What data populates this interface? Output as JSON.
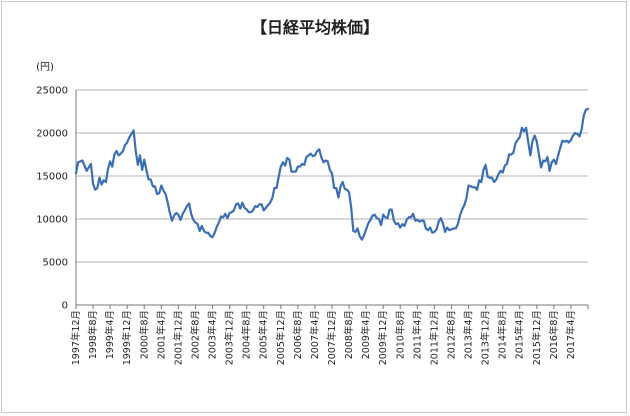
{
  "chart_data": {
    "type": "line",
    "title": "【日経平均株価】",
    "unit_label": "(円)",
    "xlabel": "",
    "ylabel": "",
    "ylim": [
      0,
      25000
    ],
    "y_ticks": [
      0,
      5000,
      10000,
      15000,
      20000,
      25000
    ],
    "grid": true,
    "x_start": "1997-12",
    "x_end": "2017-12",
    "x_tick_labels": [
      "1997年12月",
      "1998年8月",
      "1999年4月",
      "1999年12月",
      "2000年8月",
      "2001年4月",
      "2001年12月",
      "2002年8月",
      "2003年4月",
      "2003年12月",
      "2004年8月",
      "2005年4月",
      "2005年12月",
      "2006年8月",
      "2007年4月",
      "2007年12月",
      "2008年8月",
      "2009年4月",
      "2009年12月",
      "2010年8月",
      "2011年4月",
      "2011年12月",
      "2012年8月",
      "2013年4月",
      "2013年12月",
      "2014年8月",
      "2015年4月",
      "2015年12月",
      "2016年8月",
      "2017年4月"
    ],
    "series": [
      {
        "color": "#3a6fb4",
        "points": [
          [
            "1997-12",
            15300
          ],
          [
            "1998-01",
            16600
          ],
          [
            "1998-03",
            16800
          ],
          [
            "1998-05",
            15600
          ],
          [
            "1998-07",
            16400
          ],
          [
            "1998-08",
            14100
          ],
          [
            "1998-09",
            13400
          ],
          [
            "1998-10",
            13600
          ],
          [
            "1998-11",
            14800
          ],
          [
            "1998-12",
            14000
          ],
          [
            "1999-01",
            14500
          ],
          [
            "1999-02",
            14300
          ],
          [
            "1999-03",
            15800
          ],
          [
            "1999-04",
            16700
          ],
          [
            "1999-05",
            16100
          ],
          [
            "1999-06",
            17500
          ],
          [
            "1999-07",
            17900
          ],
          [
            "1999-08",
            17400
          ],
          [
            "1999-09",
            17600
          ],
          [
            "1999-10",
            17900
          ],
          [
            "1999-11",
            18600
          ],
          [
            "1999-12",
            18900
          ],
          [
            "2000-01",
            19500
          ],
          [
            "2000-02",
            19900
          ],
          [
            "2000-03",
            20300
          ],
          [
            "2000-04",
            17900
          ],
          [
            "2000-05",
            16300
          ],
          [
            "2000-06",
            17400
          ],
          [
            "2000-07",
            15700
          ],
          [
            "2000-08",
            16900
          ],
          [
            "2000-09",
            15700
          ],
          [
            "2000-10",
            14600
          ],
          [
            "2000-11",
            14600
          ],
          [
            "2000-12",
            13800
          ],
          [
            "2001-01",
            13800
          ],
          [
            "2001-02",
            12900
          ],
          [
            "2001-03",
            13000
          ],
          [
            "2001-04",
            13900
          ],
          [
            "2001-05",
            13300
          ],
          [
            "2001-06",
            12900
          ],
          [
            "2001-07",
            11900
          ],
          [
            "2001-08",
            10700
          ],
          [
            "2001-09",
            9800
          ],
          [
            "2001-10",
            10400
          ],
          [
            "2001-11",
            10700
          ],
          [
            "2001-12",
            10500
          ],
          [
            "2002-01",
            9900
          ],
          [
            "2002-02",
            10600
          ],
          [
            "2002-03",
            11000
          ],
          [
            "2002-04",
            11500
          ],
          [
            "2002-05",
            11800
          ],
          [
            "2002-06",
            10600
          ],
          [
            "2002-07",
            9900
          ],
          [
            "2002-08",
            9600
          ],
          [
            "2002-09",
            9400
          ],
          [
            "2002-10",
            8600
          ],
          [
            "2002-11",
            9200
          ],
          [
            "2002-12",
            8600
          ],
          [
            "2003-01",
            8400
          ],
          [
            "2003-02",
            8400
          ],
          [
            "2003-03",
            8000
          ],
          [
            "2003-04",
            7900
          ],
          [
            "2003-05",
            8400
          ],
          [
            "2003-06",
            9100
          ],
          [
            "2003-07",
            9600
          ],
          [
            "2003-08",
            10300
          ],
          [
            "2003-09",
            10200
          ],
          [
            "2003-10",
            10600
          ],
          [
            "2003-11",
            10100
          ],
          [
            "2003-12",
            10700
          ],
          [
            "2004-01",
            10800
          ],
          [
            "2004-02",
            11000
          ],
          [
            "2004-03",
            11700
          ],
          [
            "2004-04",
            11800
          ],
          [
            "2004-05",
            11200
          ],
          [
            "2004-06",
            11900
          ],
          [
            "2004-07",
            11300
          ],
          [
            "2004-08",
            11100
          ],
          [
            "2004-09",
            10800
          ],
          [
            "2004-10",
            10800
          ],
          [
            "2004-11",
            11000
          ],
          [
            "2004-12",
            11500
          ],
          [
            "2005-01",
            11400
          ],
          [
            "2005-02",
            11700
          ],
          [
            "2005-03",
            11700
          ],
          [
            "2005-04",
            11000
          ],
          [
            "2005-05",
            11300
          ],
          [
            "2005-06",
            11600
          ],
          [
            "2005-07",
            11900
          ],
          [
            "2005-08",
            12400
          ],
          [
            "2005-09",
            13600
          ],
          [
            "2005-10",
            13600
          ],
          [
            "2005-11",
            14900
          ],
          [
            "2005-12",
            16100
          ],
          [
            "2006-01",
            16600
          ],
          [
            "2006-02",
            16200
          ],
          [
            "2006-03",
            17100
          ],
          [
            "2006-04",
            16900
          ],
          [
            "2006-05",
            15500
          ],
          [
            "2006-06",
            15500
          ],
          [
            "2006-07",
            15500
          ],
          [
            "2006-08",
            16100
          ],
          [
            "2006-09",
            16100
          ],
          [
            "2006-10",
            16400
          ],
          [
            "2006-11",
            16300
          ],
          [
            "2006-12",
            17200
          ],
          [
            "2007-01",
            17400
          ],
          [
            "2007-02",
            17600
          ],
          [
            "2007-03",
            17300
          ],
          [
            "2007-04",
            17400
          ],
          [
            "2007-05",
            17900
          ],
          [
            "2007-06",
            18100
          ],
          [
            "2007-07",
            17200
          ],
          [
            "2007-08",
            16600
          ],
          [
            "2007-09",
            16800
          ],
          [
            "2007-10",
            16700
          ],
          [
            "2007-11",
            15700
          ],
          [
            "2007-12",
            15300
          ],
          [
            "2008-01",
            13600
          ],
          [
            "2008-02",
            13600
          ],
          [
            "2008-03",
            12500
          ],
          [
            "2008-04",
            13800
          ],
          [
            "2008-05",
            14300
          ],
          [
            "2008-06",
            13500
          ],
          [
            "2008-07",
            13400
          ],
          [
            "2008-08",
            13100
          ],
          [
            "2008-09",
            11300
          ],
          [
            "2008-10",
            8600
          ],
          [
            "2008-11",
            8500
          ],
          [
            "2008-12",
            8900
          ],
          [
            "2009-01",
            8000
          ],
          [
            "2009-02",
            7600
          ],
          [
            "2009-03",
            8100
          ],
          [
            "2009-04",
            8800
          ],
          [
            "2009-05",
            9500
          ],
          [
            "2009-06",
            9900
          ],
          [
            "2009-07",
            10400
          ],
          [
            "2009-08",
            10500
          ],
          [
            "2009-09",
            10100
          ],
          [
            "2009-10",
            10000
          ],
          [
            "2009-11",
            9300
          ],
          [
            "2009-12",
            10500
          ],
          [
            "2010-01",
            10200
          ],
          [
            "2010-02",
            10100
          ],
          [
            "2010-03",
            11100
          ],
          [
            "2010-04",
            11100
          ],
          [
            "2010-05",
            9800
          ],
          [
            "2010-06",
            9400
          ],
          [
            "2010-07",
            9500
          ],
          [
            "2010-08",
            9000
          ],
          [
            "2010-09",
            9400
          ],
          [
            "2010-10",
            9200
          ],
          [
            "2010-11",
            9900
          ],
          [
            "2010-12",
            10200
          ],
          [
            "2011-01",
            10200
          ],
          [
            "2011-02",
            10600
          ],
          [
            "2011-03",
            9800
          ],
          [
            "2011-04",
            9900
          ],
          [
            "2011-05",
            9700
          ],
          [
            "2011-06",
            9800
          ],
          [
            "2011-07",
            9800
          ],
          [
            "2011-08",
            8900
          ],
          [
            "2011-09",
            8700
          ],
          [
            "2011-10",
            9000
          ],
          [
            "2011-11",
            8400
          ],
          [
            "2011-12",
            8500
          ],
          [
            "2012-01",
            8800
          ],
          [
            "2012-02",
            9700
          ],
          [
            "2012-03",
            10100
          ],
          [
            "2012-04",
            9500
          ],
          [
            "2012-05",
            8500
          ],
          [
            "2012-06",
            9000
          ],
          [
            "2012-07",
            8700
          ],
          [
            "2012-08",
            8800
          ],
          [
            "2012-09",
            8900
          ],
          [
            "2012-10",
            8900
          ],
          [
            "2012-11",
            9400
          ],
          [
            "2012-12",
            10400
          ],
          [
            "2013-01",
            11100
          ],
          [
            "2013-02",
            11600
          ],
          [
            "2013-03",
            12400
          ],
          [
            "2013-04",
            13900
          ],
          [
            "2013-05",
            13800
          ],
          [
            "2013-06",
            13700
          ],
          [
            "2013-07",
            13700
          ],
          [
            "2013-08",
            13400
          ],
          [
            "2013-09",
            14500
          ],
          [
            "2013-10",
            14300
          ],
          [
            "2013-11",
            15700
          ],
          [
            "2013-12",
            16300
          ],
          [
            "2014-01",
            14900
          ],
          [
            "2014-02",
            14800
          ],
          [
            "2014-03",
            14800
          ],
          [
            "2014-04",
            14300
          ],
          [
            "2014-05",
            14600
          ],
          [
            "2014-06",
            15200
          ],
          [
            "2014-07",
            15600
          ],
          [
            "2014-08",
            15400
          ],
          [
            "2014-09",
            16200
          ],
          [
            "2014-10",
            16400
          ],
          [
            "2014-11",
            17500
          ],
          [
            "2014-12",
            17500
          ],
          [
            "2015-01",
            17700
          ],
          [
            "2015-02",
            18800
          ],
          [
            "2015-03",
            19200
          ],
          [
            "2015-04",
            19500
          ],
          [
            "2015-05",
            20600
          ],
          [
            "2015-06",
            20200
          ],
          [
            "2015-07",
            20600
          ],
          [
            "2015-08",
            18900
          ],
          [
            "2015-09",
            17400
          ],
          [
            "2015-10",
            19100
          ],
          [
            "2015-11",
            19700
          ],
          [
            "2015-12",
            19000
          ],
          [
            "2016-01",
            17500
          ],
          [
            "2016-02",
            16000
          ],
          [
            "2016-03",
            16800
          ],
          [
            "2016-04",
            16700
          ],
          [
            "2016-05",
            17200
          ],
          [
            "2016-06",
            15600
          ],
          [
            "2016-07",
            16600
          ],
          [
            "2016-08",
            16900
          ],
          [
            "2016-09",
            16400
          ],
          [
            "2016-10",
            17400
          ],
          [
            "2016-11",
            18300
          ],
          [
            "2016-12",
            19100
          ],
          [
            "2017-01",
            19000
          ],
          [
            "2017-02",
            19100
          ],
          [
            "2017-03",
            18900
          ],
          [
            "2017-04",
            19200
          ],
          [
            "2017-05",
            19700
          ],
          [
            "2017-06",
            20000
          ],
          [
            "2017-07",
            19900
          ],
          [
            "2017-08",
            19600
          ],
          [
            "2017-09",
            20400
          ],
          [
            "2017-10",
            22000
          ],
          [
            "2017-11",
            22700
          ],
          [
            "2017-12",
            22800
          ]
        ]
      }
    ]
  }
}
